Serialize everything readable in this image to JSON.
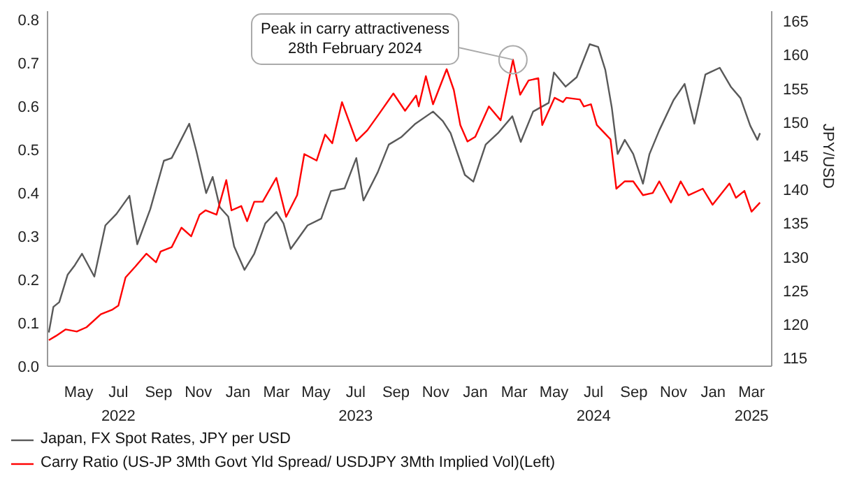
{
  "chart_data": {
    "type": "line",
    "xlabel": null,
    "y2label": "JPY/USD",
    "xlim": [
      "2022-03-14",
      "2025-04-01"
    ],
    "xticks": [
      {
        "value": "2022-05-01",
        "label": "May"
      },
      {
        "value": "2022-07-01",
        "label": "Jul\n2022"
      },
      {
        "value": "2022-09-01",
        "label": "Sep"
      },
      {
        "value": "2022-11-01",
        "label": "Nov"
      },
      {
        "value": "2023-01-01",
        "label": "Jan"
      },
      {
        "value": "2023-03-01",
        "label": "Mar"
      },
      {
        "value": "2023-05-01",
        "label": "May"
      },
      {
        "value": "2023-07-01",
        "label": "Jul\n2023"
      },
      {
        "value": "2023-09-01",
        "label": "Sep"
      },
      {
        "value": "2023-11-01",
        "label": "Nov"
      },
      {
        "value": "2024-01-01",
        "label": "Jan"
      },
      {
        "value": "2024-03-01",
        "label": "Mar"
      },
      {
        "value": "2024-05-01",
        "label": "May"
      },
      {
        "value": "2024-07-01",
        "label": "Jul\n2024"
      },
      {
        "value": "2024-09-01",
        "label": "Sep"
      },
      {
        "value": "2024-11-01",
        "label": "Nov"
      },
      {
        "value": "2025-01-01",
        "label": "Jan"
      },
      {
        "value": "2025-03-01",
        "label": "Mar\n2025"
      }
    ],
    "ylim": [
      0,
      0.82
    ],
    "yticks": [
      {
        "value": 0,
        "label": "0.0"
      },
      0.1,
      0.2,
      0.3,
      0.4,
      0.5,
      0.6,
      0.7,
      0.8
    ],
    "y2lim": [
      113.8,
      166.5
    ],
    "y2ticks": [
      115,
      120,
      125,
      130,
      135,
      140,
      145,
      150,
      155,
      160,
      165
    ],
    "grid": false,
    "legend": "bottom",
    "marker": "none",
    "line_style": "solid",
    "annotations": [
      {
        "text": "Peak in carry attractiveness\n28th February 2024",
        "x": "2024-02-28",
        "y": 0.708
      }
    ],
    "series": [
      {
        "name": "Japan, FX Spot Rates, JPY per USD",
        "color": "#595959",
        "axis": "y2",
        "x": [
          "2022-03-16",
          "2022-03-23",
          "2022-04-01",
          "2022-04-14",
          "2022-04-25",
          "2022-05-06",
          "2022-05-25",
          "2022-06-11",
          "2022-06-28",
          "2022-07-18",
          "2022-07-30",
          "2022-08-19",
          "2022-09-09",
          "2022-09-21",
          "2022-10-18",
          "2022-10-29",
          "2022-11-13",
          "2022-11-23",
          "2022-12-04",
          "2022-12-17",
          "2022-12-26",
          "2023-01-11",
          "2023-01-26",
          "2023-02-12",
          "2023-03-01",
          "2023-03-12",
          "2023-03-23",
          "2023-04-18",
          "2023-05-09",
          "2023-05-24",
          "2023-06-14",
          "2023-07-02",
          "2023-07-13",
          "2023-08-04",
          "2023-08-21",
          "2023-09-09",
          "2023-10-01",
          "2023-10-28",
          "2023-11-12",
          "2023-11-24",
          "2023-12-16",
          "2023-12-29",
          "2024-01-17",
          "2024-02-05",
          "2024-02-27",
          "2024-03-11",
          "2024-03-30",
          "2024-04-23",
          "2024-05-01",
          "2024-05-19",
          "2024-06-05",
          "2024-06-25",
          "2024-07-08",
          "2024-07-19",
          "2024-07-29",
          "2024-08-07",
          "2024-08-18",
          "2024-08-31",
          "2024-09-15",
          "2024-09-25",
          "2024-10-10",
          "2024-11-01",
          "2024-11-18",
          "2024-12-03",
          "2024-12-20",
          "2025-01-11",
          "2025-01-28",
          "2025-02-12",
          "2025-02-27",
          "2025-03-10",
          "2025-03-14"
        ],
        "values": [
          118.8,
          122.6,
          123.3,
          127.4,
          128.8,
          130.5,
          127.1,
          134.7,
          136.4,
          139.1,
          131.9,
          137.1,
          144.3,
          144.7,
          149.8,
          145.7,
          139.5,
          141.9,
          137.4,
          136.0,
          131.6,
          128.1,
          130.5,
          135.0,
          136.7,
          135.0,
          131.2,
          134.7,
          135.7,
          139.8,
          140.2,
          144.7,
          138.4,
          142.6,
          146.7,
          147.8,
          149.8,
          151.6,
          150.2,
          148.4,
          142.2,
          141.2,
          146.7,
          148.4,
          150.9,
          147.1,
          151.6,
          152.9,
          157.4,
          155.3,
          156.7,
          161.6,
          161.2,
          157.8,
          152.2,
          145.3,
          147.4,
          145.3,
          140.9,
          145.3,
          148.8,
          153.3,
          155.7,
          149.8,
          157.1,
          158.1,
          155.3,
          153.6,
          149.5,
          147.4,
          148.4
        ]
      },
      {
        "name": "Carry Ratio (US-JP 3Mth Govt Yld Spread/ USDJPY 3Mth Implied Vol)(Left)",
        "color": "#ff0000",
        "x": [
          "2022-03-16",
          "2022-03-27",
          "2022-04-11",
          "2022-04-28",
          "2022-05-13",
          "2022-06-04",
          "2022-06-21",
          "2022-07-01",
          "2022-07-12",
          "2022-07-27",
          "2022-08-13",
          "2022-08-28",
          "2022-09-04",
          "2022-09-21",
          "2022-10-06",
          "2022-10-21",
          "2022-11-03",
          "2022-11-12",
          "2022-11-29",
          "2022-12-14",
          "2022-12-22",
          "2023-01-06",
          "2023-01-15",
          "2023-01-26",
          "2023-02-08",
          "2023-03-01",
          "2023-03-16",
          "2023-04-02",
          "2023-04-13",
          "2023-05-02",
          "2023-05-15",
          "2023-05-26",
          "2023-06-10",
          "2023-07-02",
          "2023-07-19",
          "2023-08-07",
          "2023-08-28",
          "2023-09-15",
          "2023-10-02",
          "2023-10-06",
          "2023-10-17",
          "2023-10-28",
          "2023-11-18",
          "2023-11-29",
          "2023-12-09",
          "2023-12-20",
          "2024-01-01",
          "2024-01-22",
          "2024-02-09",
          "2024-02-28",
          "2024-03-10",
          "2024-03-23",
          "2024-04-07",
          "2024-04-13",
          "2024-05-02",
          "2024-05-15",
          "2024-05-20",
          "2024-06-10",
          "2024-06-16",
          "2024-06-27",
          "2024-07-06",
          "2024-07-27",
          "2024-08-05",
          "2024-08-18",
          "2024-08-31",
          "2024-09-15",
          "2024-09-30",
          "2024-10-10",
          "2024-10-28",
          "2024-11-12",
          "2024-11-24",
          "2024-12-16",
          "2024-12-31",
          "2025-01-26",
          "2025-02-05",
          "2025-02-18",
          "2025-03-01",
          "2025-03-14"
        ],
        "values": [
          0.06,
          0.07,
          0.085,
          0.08,
          0.09,
          0.12,
          0.13,
          0.14,
          0.205,
          0.23,
          0.26,
          0.24,
          0.265,
          0.275,
          0.32,
          0.3,
          0.35,
          0.36,
          0.35,
          0.43,
          0.36,
          0.37,
          0.335,
          0.38,
          0.38,
          0.435,
          0.345,
          0.395,
          0.49,
          0.475,
          0.535,
          0.515,
          0.61,
          0.52,
          0.545,
          0.585,
          0.63,
          0.59,
          0.625,
          0.6,
          0.67,
          0.605,
          0.686,
          0.638,
          0.557,
          0.519,
          0.53,
          0.6,
          0.568,
          0.708,
          0.627,
          0.66,
          0.665,
          0.557,
          0.62,
          0.61,
          0.62,
          0.616,
          0.6,
          0.605,
          0.557,
          0.524,
          0.41,
          0.427,
          0.427,
          0.395,
          0.4,
          0.427,
          0.378,
          0.427,
          0.395,
          0.41,
          0.373,
          0.422,
          0.389,
          0.405,
          0.357,
          0.378
        ]
      }
    ]
  }
}
